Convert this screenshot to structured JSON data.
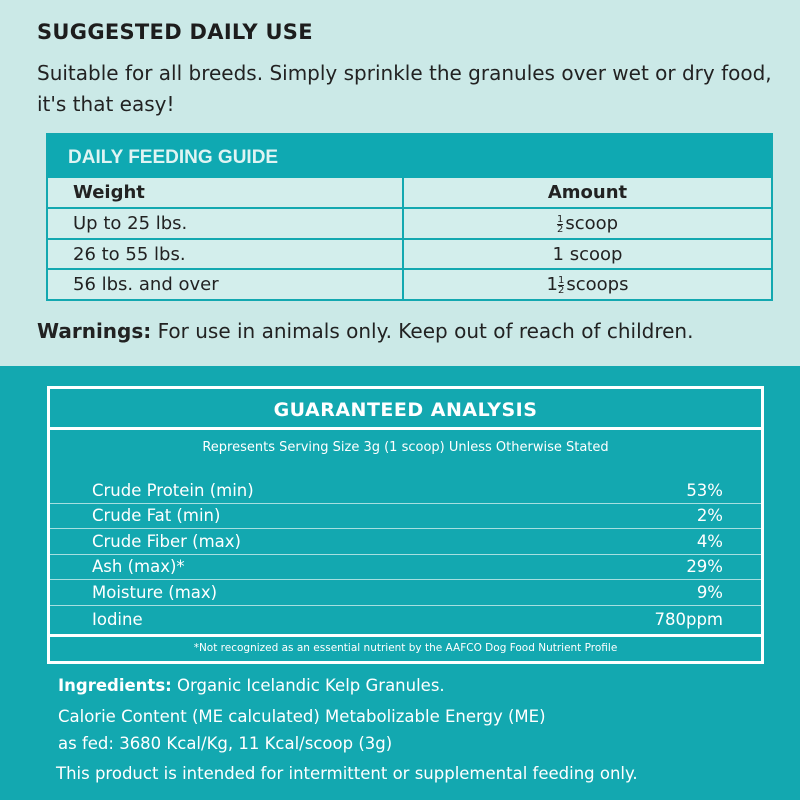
{
  "suggested_use": {
    "heading": "SUGGESTED DAILY USE",
    "text": "Suitable for all breeds. Simply sprinkle the granules over wet or dry food, it's that easy!"
  },
  "feeding_guide": {
    "title": "DAILY FEEDING GUIDE",
    "headers": [
      "Weight",
      "Amount"
    ],
    "rows": [
      {
        "weight": "Up to 25 lbs.",
        "whole": "",
        "num": "1",
        "den": "2",
        "unit": "scoop"
      },
      {
        "weight": "26 to 55 lbs.",
        "whole": "1",
        "num": "",
        "den": "",
        "unit": "scoop"
      },
      {
        "weight": "56 lbs. and over",
        "whole": "1",
        "num": "1",
        "den": "2",
        "unit": "scoops"
      }
    ]
  },
  "warnings": {
    "label": "Warnings:",
    "text": "For use in animals only. Keep out of reach of children."
  },
  "analysis": {
    "title": "GUARANTEED ANALYSIS",
    "subtitle": "Represents Serving Size 3g (1 scoop) Unless Otherwise Stated",
    "rows": [
      {
        "name": "Crude Protein (min)",
        "value": "53%"
      },
      {
        "name": "Crude Fat (min)",
        "value": "2%"
      },
      {
        "name": "Crude Fiber (max)",
        "value": "4%"
      },
      {
        "name": "Ash (max)*",
        "value": "29%"
      },
      {
        "name": "Moisture (max)",
        "value": "9%"
      },
      {
        "name": "Iodine",
        "value": "780ppm"
      }
    ],
    "footnote": "*Not recognized as an essential nutrient by the AAFCO Dog Food Nutrient Profile"
  },
  "ingredients": {
    "label": "Ingredients:",
    "text": "Organic Icelandic Kelp Granules."
  },
  "calorie": {
    "line1": "Calorie Content (ME calculated) Metabolizable Energy (ME)",
    "line2": "as fed: 3680 Kcal/Kg, 11 Kcal/scoop (3g)"
  },
  "disclaimer": "This product is intended for intermittent or supplemental feeding only.",
  "colors": {
    "top_bg": "#cbe9e7",
    "teal": "#13a8b0",
    "text": "#222222"
  }
}
